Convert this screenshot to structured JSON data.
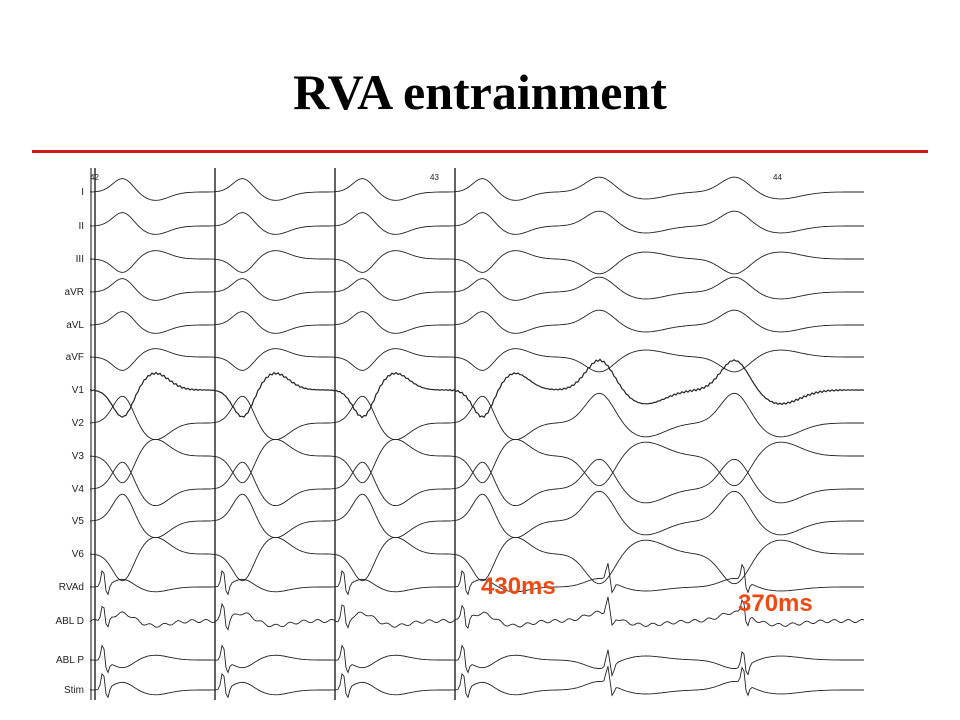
{
  "slide": {
    "title": "RVA entrainment",
    "accent_color": "#cc1a1a"
  },
  "tracing": {
    "beat_numbers": [
      "42",
      "43",
      "44"
    ],
    "leads": [
      "I",
      "II",
      "III",
      "aVR",
      "aVL",
      "aVF",
      "V1",
      "V2",
      "V3",
      "V4",
      "V5",
      "V6",
      "RVAd",
      "ABL D",
      "ABL P",
      "Stim"
    ],
    "intervals": [
      {
        "label": "430ms",
        "color": "#f04a12"
      },
      {
        "label": "370ms",
        "color": "#f04a12"
      }
    ]
  }
}
